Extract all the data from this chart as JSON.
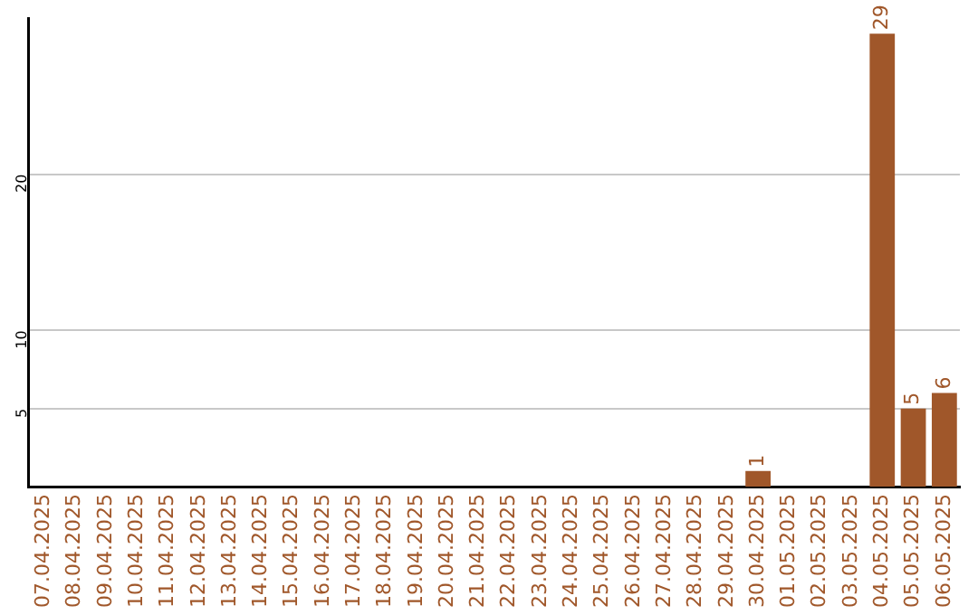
{
  "chart_data": {
    "type": "bar",
    "categories": [
      "07.04.2025",
      "08.04.2025",
      "09.04.2025",
      "10.04.2025",
      "11.04.2025",
      "12.04.2025",
      "13.04.2025",
      "14.04.2025",
      "15.04.2025",
      "16.04.2025",
      "17.04.2025",
      "18.04.2025",
      "19.04.2025",
      "20.04.2025",
      "21.04.2025",
      "22.04.2025",
      "23.04.2025",
      "24.04.2025",
      "25.04.2025",
      "26.04.2025",
      "27.04.2025",
      "28.04.2025",
      "29.04.2025",
      "30.04.2025",
      "01.05.2025",
      "02.05.2025",
      "03.05.2025",
      "04.05.2025",
      "05.05.2025",
      "06.05.2025"
    ],
    "values": [
      0,
      0,
      0,
      0,
      0,
      0,
      0,
      0,
      0,
      0,
      0,
      0,
      0,
      0,
      0,
      0,
      0,
      0,
      0,
      0,
      0,
      0,
      0,
      1,
      0,
      0,
      0,
      29,
      5,
      6
    ],
    "value_labels": [
      null,
      null,
      null,
      null,
      null,
      null,
      null,
      null,
      null,
      null,
      null,
      null,
      null,
      null,
      null,
      null,
      null,
      null,
      null,
      null,
      null,
      null,
      null,
      "1",
      null,
      null,
      null,
      "29",
      "5",
      "6"
    ],
    "color": "#a0572a",
    "ylim": [
      0,
      30
    ],
    "yticks": [
      5,
      10,
      20
    ],
    "grid": "y",
    "legend": false
  }
}
